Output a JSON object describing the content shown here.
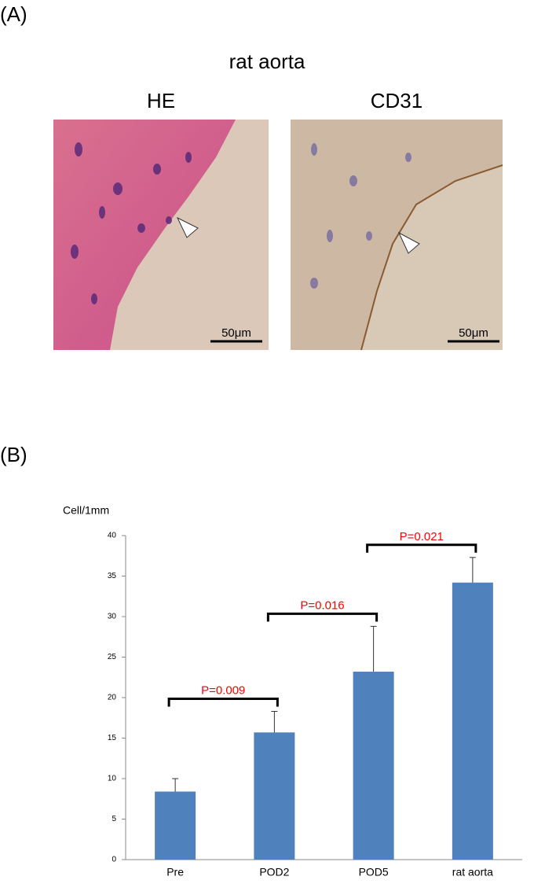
{
  "panel_a": {
    "label": "(A)",
    "title": "rat aorta",
    "images": [
      {
        "label": "HE",
        "scale_bar": "50μm"
      },
      {
        "label": "CD31",
        "scale_bar": "50μm"
      }
    ]
  },
  "panel_b": {
    "label": "(B)"
  },
  "chart_data": {
    "type": "bar",
    "y_label": "Cell/1mm",
    "categories": [
      "Pre",
      "POD2",
      "POD5",
      "rat aorta"
    ],
    "values": [
      8.4,
      15.7,
      23.2,
      34.2
    ],
    "errors": [
      1.6,
      2.6,
      5.6,
      3.1
    ],
    "color": "#4f81bd",
    "ylim": [
      0,
      40
    ],
    "yticks": [
      0,
      5,
      10,
      15,
      20,
      25,
      30,
      35,
      40
    ],
    "grid": false,
    "annotations": [
      "P=0.009",
      "P=0.016",
      "P=0.021"
    ],
    "annotation_color": "#ff0000"
  }
}
